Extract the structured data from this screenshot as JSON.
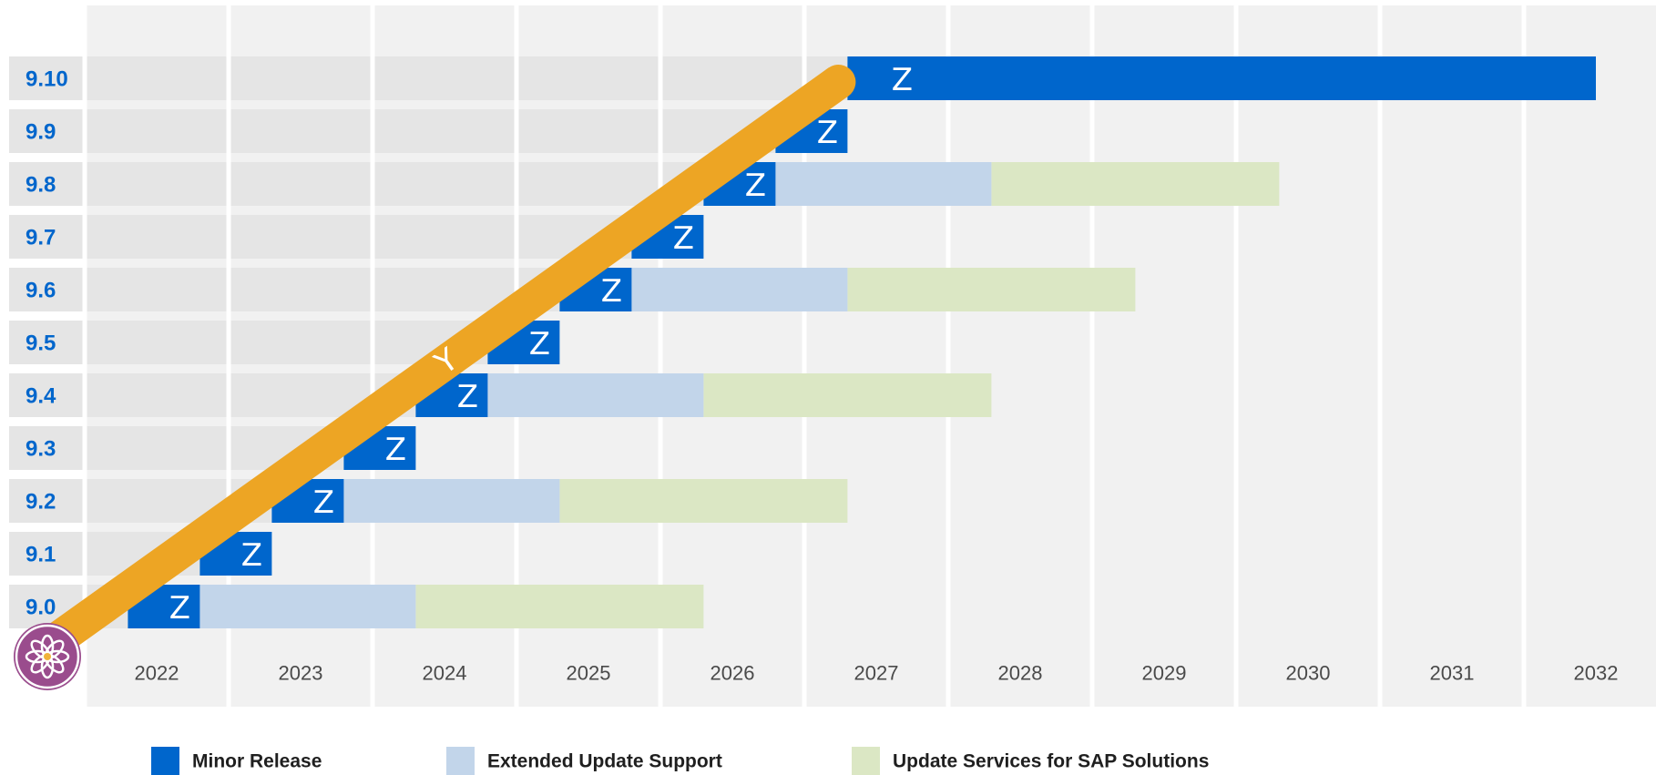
{
  "chart_data": {
    "type": "bar",
    "subtype": "horizontal-timeline",
    "x": [
      "2022",
      "2023",
      "2024",
      "2025",
      "2026",
      "2027",
      "2028",
      "2029",
      "2030",
      "2031",
      "2032"
    ],
    "categories": [
      "9.0",
      "9.1",
      "9.2",
      "9.3",
      "9.4",
      "9.5",
      "9.6",
      "9.7",
      "9.8",
      "9.9",
      "9.10"
    ],
    "xlim": [
      2021.5,
      2032.5
    ],
    "grid": true,
    "series": [
      {
        "name": "Minor Release",
        "color": "#0066cc",
        "values": [
          {
            "release": "9.0",
            "start": 2021.8,
            "end": 2022.3
          },
          {
            "release": "9.1",
            "start": 2022.3,
            "end": 2022.8
          },
          {
            "release": "9.2",
            "start": 2022.8,
            "end": 2023.3
          },
          {
            "release": "9.3",
            "start": 2023.3,
            "end": 2023.8
          },
          {
            "release": "9.4",
            "start": 2023.8,
            "end": 2024.3
          },
          {
            "release": "9.5",
            "start": 2024.3,
            "end": 2024.8
          },
          {
            "release": "9.6",
            "start": 2024.8,
            "end": 2025.3
          },
          {
            "release": "9.7",
            "start": 2025.3,
            "end": 2025.8
          },
          {
            "release": "9.8",
            "start": 2025.8,
            "end": 2026.3
          },
          {
            "release": "9.9",
            "start": 2026.3,
            "end": 2026.8
          },
          {
            "release": "9.10",
            "start": 2026.8,
            "end": 2032.0
          }
        ]
      },
      {
        "name": "Extended Update Support",
        "color": "#c2d5ea",
        "values": [
          {
            "release": "9.0",
            "start": 2022.3,
            "end": 2023.8
          },
          {
            "release": "9.2",
            "start": 2023.3,
            "end": 2024.8
          },
          {
            "release": "9.4",
            "start": 2024.3,
            "end": 2025.8
          },
          {
            "release": "9.6",
            "start": 2025.3,
            "end": 2026.8
          },
          {
            "release": "9.8",
            "start": 2026.3,
            "end": 2027.8
          }
        ]
      },
      {
        "name": "Update Services for SAP Solutions",
        "color": "#dbe7c4",
        "values": [
          {
            "release": "9.0",
            "start": 2023.8,
            "end": 2025.8
          },
          {
            "release": "9.2",
            "start": 2024.8,
            "end": 2026.8
          },
          {
            "release": "9.4",
            "start": 2025.8,
            "end": 2027.8
          },
          {
            "release": "9.6",
            "start": 2026.8,
            "end": 2028.8
          },
          {
            "release": "9.8",
            "start": 2027.8,
            "end": 2029.8
          }
        ]
      }
    ],
    "bar_label": "Z",
    "diagonal": {
      "label": "Y",
      "color": "#eda524"
    },
    "legend": {
      "position": "bottom",
      "items": [
        {
          "label": "Minor Release",
          "color": "#0066cc"
        },
        {
          "label": "Extended Update Support",
          "color": "#c2d5ea"
        },
        {
          "label": "Update Services for SAP Solutions",
          "color": "#dbe7c4"
        }
      ]
    },
    "colors": {
      "plot_bg": "#f1f1f1",
      "row_bg": "#e5e5e5",
      "grid": "#ffffff",
      "release_label": "#0066cc",
      "axis_text": "#4a4a4a",
      "legend_text": "#1f1f1f",
      "logo_bg": "#9a4c8d"
    },
    "logo_icon": "flower-logo-icon"
  }
}
